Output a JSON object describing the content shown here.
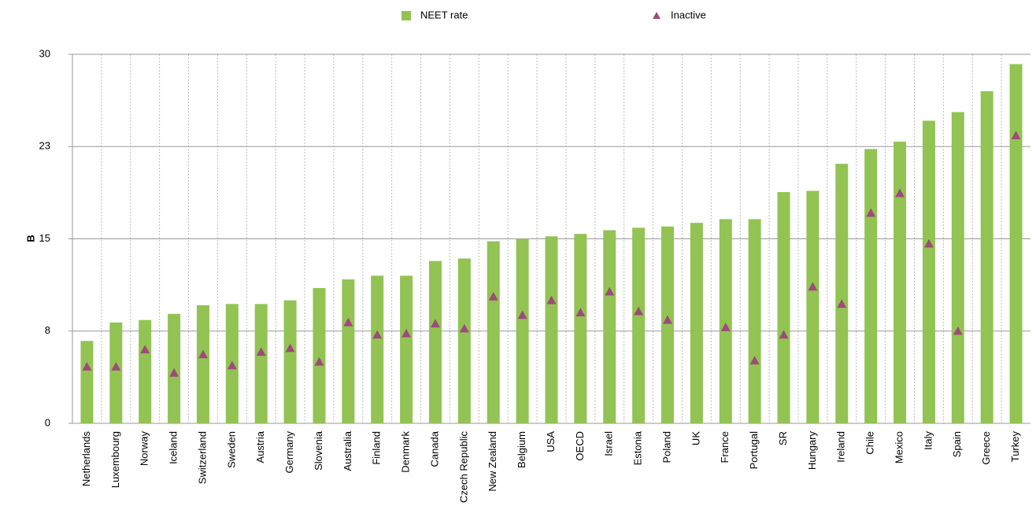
{
  "chart_data": {
    "type": "bar",
    "y_label": "B",
    "categories": [
      "Netherlands",
      "Luxembourg",
      "Norway",
      "Iceland",
      "Switzerland",
      "Sweden",
      "Austria",
      "Germany",
      "Slovenia",
      "Australia",
      "Finland",
      "Denmark",
      "Canada",
      "Czech Republic",
      "New Zealand",
      "Belgium",
      "USA",
      "OECD",
      "Israel",
      "Estonia",
      "Poland",
      "UK",
      "France",
      "Portugal",
      "SR",
      "Hungary",
      "Ireland",
      "Chile",
      "Mexico",
      "Italy",
      "Spain",
      "Greece",
      "Turkey"
    ],
    "series": [
      {
        "name": "NEET rate",
        "type": "bar",
        "color": "#92c353",
        "values": [
          6.7,
          8.2,
          8.4,
          8.9,
          9.6,
          9.7,
          9.7,
          10.0,
          11.0,
          11.7,
          12.0,
          12.0,
          13.2,
          13.4,
          14.8,
          15.0,
          15.2,
          15.4,
          15.7,
          15.9,
          16.0,
          16.3,
          16.6,
          16.6,
          18.8,
          18.9,
          21.1,
          22.3,
          22.9,
          24.6,
          25.3,
          27.0,
          29.2
        ]
      },
      {
        "name": "Inactive",
        "type": "triangle",
        "color": "#9e4a7b",
        "values": [
          4.6,
          4.6,
          6.0,
          4.1,
          5.6,
          4.7,
          5.8,
          6.1,
          5.0,
          8.2,
          7.2,
          7.3,
          8.1,
          7.7,
          10.3,
          8.8,
          10.0,
          9.0,
          10.7,
          9.1,
          8.4,
          null,
          7.8,
          5.1,
          7.2,
          11.1,
          9.7,
          17.1,
          18.7,
          14.6,
          7.5,
          null,
          23.4
        ]
      }
    ],
    "ylim": [
      0,
      30
    ],
    "yticks": [
      0,
      {
        "value": 7.5,
        "label": "8"
      },
      15,
      {
        "value": 22.5,
        "label": "23"
      },
      30
    ],
    "grid": true
  }
}
